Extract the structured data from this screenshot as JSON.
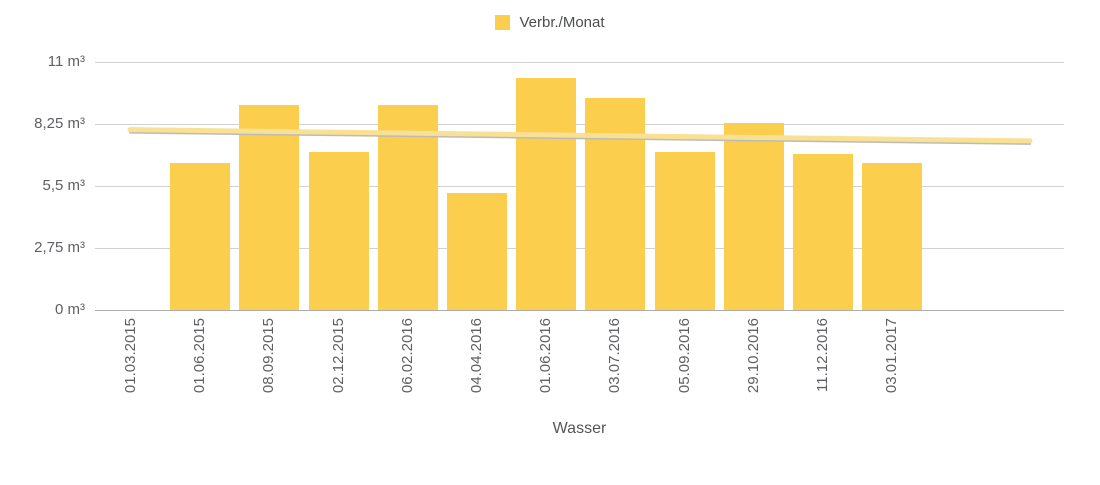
{
  "legend": {
    "label": "Verbr./Monat"
  },
  "colors": {
    "bar": "#FBCE4D",
    "trend_line": "#F8E095",
    "trend_shadow": "#BDBBB6",
    "gridline": "#D2D2D2",
    "baseline": "#ACACAC",
    "axis_text": "#5E6063"
  },
  "chart_data": {
    "type": "bar",
    "title": "",
    "xlabel": "Wasser",
    "ylabel": "",
    "legend_position": "top",
    "grid": true,
    "ylim": [
      0,
      11
    ],
    "categories": [
      "01.03.2015",
      "01.06.2015",
      "08.09.2015",
      "02.12.2015",
      "06.02.2016",
      "04.04.2016",
      "01.06.2016",
      "03.07.2016",
      "05.09.2016",
      "29.10.2016",
      "11.12.2016",
      "03.01.2017"
    ],
    "series": [
      {
        "name": "Verbr./Monat",
        "values": [
          0,
          6.5,
          9.1,
          7.0,
          9.1,
          5.2,
          10.3,
          9.4,
          7.0,
          8.3,
          6.9,
          6.5
        ]
      }
    ],
    "trendline": {
      "start_value": 8.0,
      "end_value": 7.5
    },
    "y_ticks": [
      {
        "value": 0,
        "label": "0 m³"
      },
      {
        "value": 2.75,
        "label": "2,75 m³"
      },
      {
        "value": 5.5,
        "label": "5,5 m³"
      },
      {
        "value": 8.25,
        "label": "8,25 m³"
      },
      {
        "value": 11,
        "label": "11 m³"
      }
    ]
  }
}
